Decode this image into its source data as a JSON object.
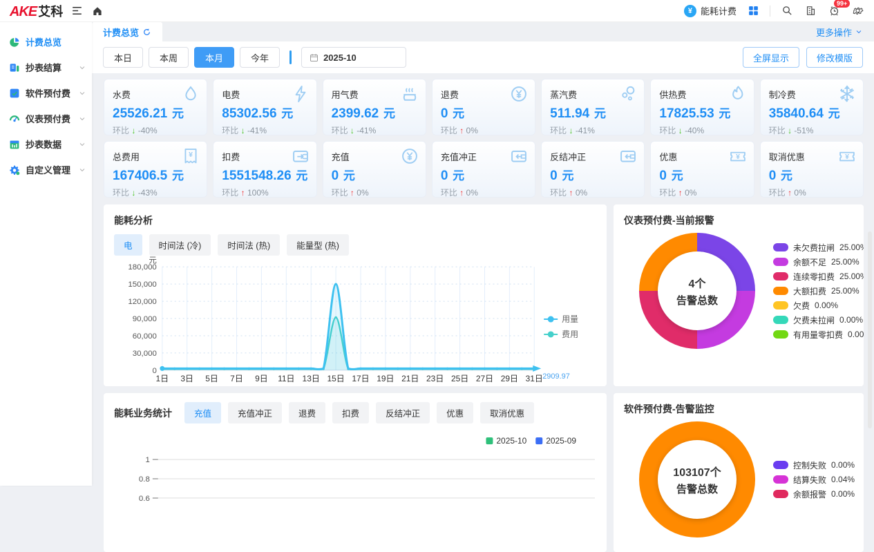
{
  "header": {
    "logo_primary": "AKE",
    "logo_secondary": "艾科",
    "app_label": "能耗计费",
    "notification_badge": "99+"
  },
  "sidebar": {
    "items": [
      {
        "label": "计费总览",
        "icon": "pie",
        "active": true,
        "expandable": false
      },
      {
        "label": "抄表结算",
        "icon": "meter",
        "active": false,
        "expandable": true
      },
      {
        "label": "软件预付费",
        "icon": "software",
        "active": false,
        "expandable": true
      },
      {
        "label": "仪表预付费",
        "icon": "gauge",
        "active": false,
        "expandable": true
      },
      {
        "label": "抄表数据",
        "icon": "calendar",
        "active": false,
        "expandable": true
      },
      {
        "label": "自定义管理",
        "icon": "gear",
        "active": false,
        "expandable": true
      }
    ]
  },
  "tabbar": {
    "active_tab": "计费总览",
    "more_actions": "更多操作"
  },
  "toolbar": {
    "ranges": [
      "本日",
      "本周",
      "本月",
      "今年"
    ],
    "active_range": "本月",
    "date_value": "2025-10",
    "fullscreen_label": "全屏显示",
    "edit_template_label": "修改模版"
  },
  "cards": [
    {
      "label": "水费",
      "value": "25526.21",
      "unit": "元",
      "trend_label": "环比",
      "dir": "down",
      "pct": "-40%",
      "icon": "water"
    },
    {
      "label": "电费",
      "value": "85302.56",
      "unit": "元",
      "trend_label": "环比",
      "dir": "down",
      "pct": "-41%",
      "icon": "bolt"
    },
    {
      "label": "用气费",
      "value": "2399.62",
      "unit": "元",
      "trend_label": "环比",
      "dir": "down",
      "pct": "-41%",
      "icon": "gas"
    },
    {
      "label": "退费",
      "value": "0",
      "unit": "元",
      "trend_label": "环比",
      "dir": "up",
      "pct": "0%",
      "icon": "coin"
    },
    {
      "label": "蒸汽费",
      "value": "511.94",
      "unit": "元",
      "trend_label": "环比",
      "dir": "down",
      "pct": "-41%",
      "icon": "steam"
    },
    {
      "label": "供热费",
      "value": "17825.53",
      "unit": "元",
      "trend_label": "环比",
      "dir": "down",
      "pct": "-40%",
      "icon": "flame"
    },
    {
      "label": "制冷费",
      "value": "35840.64",
      "unit": "元",
      "trend_label": "环比",
      "dir": "down",
      "pct": "-51%",
      "icon": "snow"
    },
    {
      "label": "总费用",
      "value": "167406.5",
      "unit": "元",
      "trend_label": "环比",
      "dir": "down",
      "pct": "-43%",
      "icon": "bill"
    },
    {
      "label": "扣费",
      "value": "1551548.26",
      "unit": "元",
      "trend_label": "环比",
      "dir": "up",
      "pct": "100%",
      "icon": "wallet"
    },
    {
      "label": "充值",
      "value": "0",
      "unit": "元",
      "trend_label": "环比",
      "dir": "up",
      "pct": "0%",
      "icon": "coin"
    },
    {
      "label": "充值冲正",
      "value": "0",
      "unit": "元",
      "trend_label": "环比",
      "dir": "up",
      "pct": "0%",
      "icon": "walletarrow"
    },
    {
      "label": "反结冲正",
      "value": "0",
      "unit": "元",
      "trend_label": "环比",
      "dir": "up",
      "pct": "0%",
      "icon": "walletarrow"
    },
    {
      "label": "优惠",
      "value": "0",
      "unit": "元",
      "trend_label": "环比",
      "dir": "up",
      "pct": "0%",
      "icon": "ticket"
    },
    {
      "label": "取消优惠",
      "value": "0",
      "unit": "元",
      "trend_label": "环比",
      "dir": "up",
      "pct": "0%",
      "icon": "ticket"
    }
  ],
  "energy_analysis": {
    "title": "能耗分析",
    "tabs": [
      "电",
      "时间法 (冷)",
      "时间法 (热)",
      "能量型 (热)"
    ],
    "active_tab": "电",
    "chart_data": {
      "type": "line",
      "unit_label": "元",
      "ylim": [
        0,
        180000
      ],
      "yticks": [
        0,
        30000,
        60000,
        90000,
        120000,
        150000,
        180000
      ],
      "x_labels": [
        "1日",
        "3日",
        "5日",
        "7日",
        "9日",
        "11日",
        "13日",
        "15日",
        "17日",
        "19日",
        "21日",
        "23日",
        "25日",
        "27日",
        "29日",
        "31日"
      ],
      "days": 31,
      "peak_day": 15,
      "series": [
        {
          "name": "用量",
          "color": "#3ec1f0",
          "baseline": 2910,
          "peak": 150000
        },
        {
          "name": "费用",
          "color": "#45d0cb",
          "baseline": 2000,
          "peak": 92000
        }
      ],
      "end_label": "2909.97",
      "legend_position": "right",
      "grid": true
    }
  },
  "meter_alarm": {
    "title": "仪表预付费-当前报警",
    "center_value": "4个",
    "center_label": "告警总数",
    "chart_data": {
      "type": "pie",
      "total": 4,
      "segments": [
        {
          "label": "未欠费拉闸",
          "pct": 25,
          "pct_label": "25.00%",
          "color": "#7b45e7"
        },
        {
          "label": "余额不足",
          "pct": 25,
          "pct_label": "25.00%",
          "color": "#c43be0"
        },
        {
          "label": "连续零扣费",
          "pct": 25,
          "pct_label": "25.00%",
          "color": "#e02c69"
        },
        {
          "label": "大额扣费",
          "pct": 25,
          "pct_label": "25.00%",
          "color": "#ff8a00"
        },
        {
          "label": "欠费",
          "pct": 0,
          "pct_label": "0.00%",
          "color": "#ffc524"
        },
        {
          "label": "欠费未拉闸",
          "pct": 0,
          "pct_label": "0.00%",
          "color": "#35d8b9"
        },
        {
          "label": "有用量零扣费",
          "pct": 0,
          "pct_label": "0.00%",
          "color": "#72d813"
        }
      ]
    }
  },
  "business_stats": {
    "title": "能耗业务统计",
    "tabs": [
      "充值",
      "充值冲正",
      "退费",
      "扣费",
      "反结冲正",
      "优惠",
      "取消优惠"
    ],
    "active_tab": "充值",
    "chart_data": {
      "type": "line",
      "yticks_visible": [
        1,
        0.8,
        0.6
      ],
      "ylim": [
        0,
        1
      ],
      "series": [
        {
          "name": "2025-10",
          "color": "#2ec07a",
          "values": []
        },
        {
          "name": "2025-09",
          "color": "#3b6ef5",
          "values": []
        }
      ],
      "legend_position": "top-right",
      "grid": true
    }
  },
  "software_alarm": {
    "title": "软件预付费-告警监控",
    "center_value": "103107个",
    "center_label": "告警总数",
    "chart_data": {
      "type": "pie",
      "total": 103107,
      "ring_color": "#ff8a00",
      "segments": [
        {
          "label": "控制失败",
          "pct": 0,
          "pct_label": "0.00%",
          "color": "#6a3cf0"
        },
        {
          "label": "结算失败",
          "pct": 0.04,
          "pct_label": "0.04%",
          "color": "#d633d6"
        },
        {
          "label": "余额报警",
          "pct": 0,
          "pct_label": "0.00%",
          "color": "#e0295e"
        }
      ]
    }
  }
}
